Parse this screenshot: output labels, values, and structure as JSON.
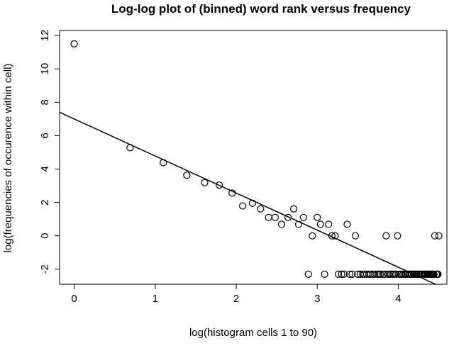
{
  "chart_data": {
    "type": "scatter",
    "title": "Log-log plot of (binned) word rank versus frequency",
    "xlabel": "log(histogram cells 1 to 90)",
    "ylabel": "log(frequencies of occurence within cell)",
    "xlim": [
      -0.18,
      4.6
    ],
    "ylim": [
      -2.9,
      12.3
    ],
    "x_ticks": [
      0,
      1,
      2,
      3,
      4
    ],
    "x_tick_labels": [
      "0",
      "1",
      "2",
      "3",
      "4"
    ],
    "y_ticks": [
      -2,
      0,
      2,
      4,
      6,
      8,
      10,
      12
    ],
    "y_tick_labels": [
      "-2",
      "0",
      "2",
      "4",
      "6",
      "8",
      "10",
      "12"
    ],
    "grid": false,
    "points": [
      [
        0,
        11.5
      ],
      [
        0.69,
        5.28
      ],
      [
        1.1,
        4.38
      ],
      [
        1.39,
        3.63
      ],
      [
        1.61,
        3.18
      ],
      [
        1.79,
        3.04
      ],
      [
        1.95,
        2.56
      ],
      [
        2.08,
        1.79
      ],
      [
        2.2,
        1.95
      ],
      [
        2.3,
        1.61
      ],
      [
        2.4,
        1.1
      ],
      [
        2.48,
        1.1
      ],
      [
        2.56,
        0.69
      ],
      [
        2.64,
        1.1
      ],
      [
        2.71,
        1.61
      ],
      [
        2.77,
        0.69
      ],
      [
        2.83,
        1.1
      ],
      [
        2.89,
        -2.3
      ],
      [
        2.94,
        0.0
      ],
      [
        3.0,
        1.1
      ],
      [
        3.04,
        0.69
      ],
      [
        3.09,
        -2.3
      ],
      [
        3.14,
        0.69
      ],
      [
        3.18,
        0.0
      ],
      [
        3.22,
        0.0
      ],
      [
        3.26,
        -2.3
      ],
      [
        3.3,
        -2.3
      ],
      [
        3.33,
        -2.3
      ],
      [
        3.37,
        0.69
      ],
      [
        3.4,
        -2.3
      ],
      [
        3.43,
        -2.3
      ],
      [
        3.47,
        0.0
      ],
      [
        3.5,
        -2.3
      ],
      [
        3.53,
        -2.3
      ],
      [
        3.56,
        -2.3
      ],
      [
        3.58,
        -2.3
      ],
      [
        3.61,
        -2.3
      ],
      [
        3.64,
        -2.3
      ],
      [
        3.66,
        -2.3
      ],
      [
        3.69,
        -2.3
      ],
      [
        3.71,
        -2.3
      ],
      [
        3.74,
        -2.3
      ],
      [
        3.76,
        -2.3
      ],
      [
        3.78,
        -2.3
      ],
      [
        3.81,
        -2.3
      ],
      [
        3.83,
        -2.3
      ],
      [
        3.85,
        0.0
      ],
      [
        3.87,
        -2.3
      ],
      [
        3.89,
        -2.3
      ],
      [
        3.91,
        -2.3
      ],
      [
        3.93,
        -2.3
      ],
      [
        3.95,
        -2.3
      ],
      [
        3.97,
        -2.3
      ],
      [
        3.99,
        0.0
      ],
      [
        4.01,
        -2.3
      ],
      [
        4.03,
        -2.3
      ],
      [
        4.04,
        -2.3
      ],
      [
        4.06,
        -2.3
      ],
      [
        4.08,
        -2.3
      ],
      [
        4.09,
        -2.3
      ],
      [
        4.11,
        -2.3
      ],
      [
        4.13,
        -2.3
      ],
      [
        4.14,
        -2.3
      ],
      [
        4.16,
        -2.3
      ],
      [
        4.17,
        -2.3
      ],
      [
        4.19,
        -2.3
      ],
      [
        4.2,
        -2.3
      ],
      [
        4.22,
        -2.3
      ],
      [
        4.23,
        -2.3
      ],
      [
        4.25,
        -2.3
      ],
      [
        4.26,
        -2.3
      ],
      [
        4.28,
        -2.3
      ],
      [
        4.29,
        -2.3
      ],
      [
        4.3,
        -2.3
      ],
      [
        4.32,
        -2.3
      ],
      [
        4.33,
        -2.3
      ],
      [
        4.34,
        -2.3
      ],
      [
        4.36,
        -2.3
      ],
      [
        4.37,
        -2.3
      ],
      [
        4.38,
        -2.3
      ],
      [
        4.39,
        -2.3
      ],
      [
        4.41,
        -2.3
      ],
      [
        4.42,
        -2.3
      ],
      [
        4.43,
        -2.3
      ],
      [
        4.44,
        -2.3
      ],
      [
        4.45,
        0.0
      ],
      [
        4.47,
        -2.3
      ],
      [
        4.48,
        -2.3
      ],
      [
        4.49,
        -2.3
      ],
      [
        4.5,
        0.0
      ]
    ],
    "fit_line": {
      "intercept": 7.0,
      "slope": -2.22
    }
  }
}
